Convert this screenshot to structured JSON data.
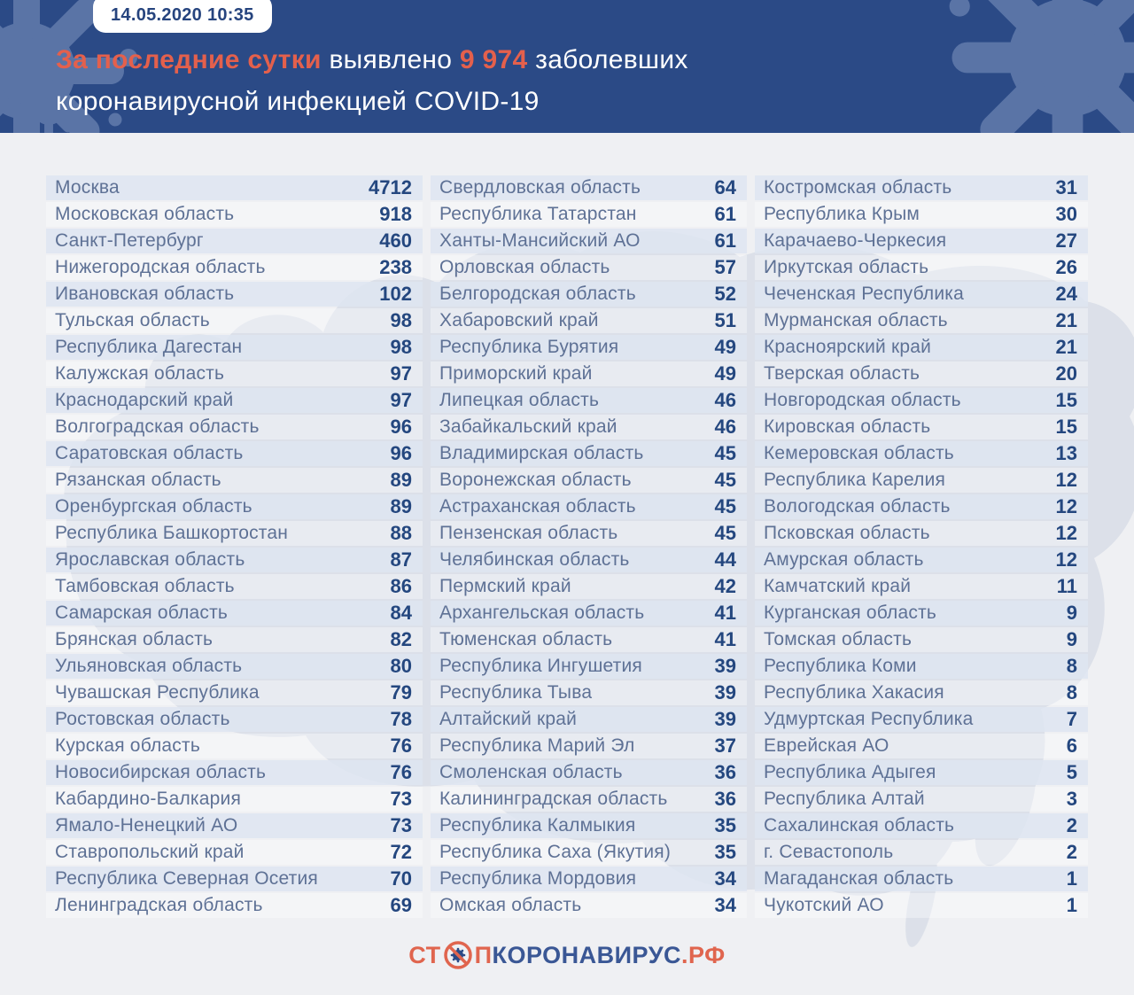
{
  "header": {
    "timestamp": "14.05.2020 10:35",
    "headline": {
      "accent1": "За последние сутки",
      "mid": " выявлено ",
      "number": "9 974",
      "tail": " заболевших",
      "line2": "коронавирусной инфекцией COVID-19"
    }
  },
  "chart_data": {
    "type": "table",
    "title": "За последние сутки выявлено 9 974 заболевших коронавирусной инфекцией COVID-19",
    "date_label": "14.05.2020 10:35",
    "total_new_cases": 9974,
    "columns": [
      {
        "rows": [
          [
            "Москва",
            4712
          ],
          [
            "Московская область",
            918
          ],
          [
            "Санкт-Петербург",
            460
          ],
          [
            "Нижегородская область",
            238
          ],
          [
            "Ивановская область",
            102
          ],
          [
            "Тульская область",
            98
          ],
          [
            "Республика Дагестан",
            98
          ],
          [
            "Калужская область",
            97
          ],
          [
            "Краснодарский край",
            97
          ],
          [
            "Волгоградская область",
            96
          ],
          [
            "Саратовская область",
            96
          ],
          [
            "Рязанская область",
            89
          ],
          [
            "Оренбургская область",
            89
          ],
          [
            "Республика Башкортостан",
            88
          ],
          [
            "Ярославская область",
            87
          ],
          [
            "Тамбовская область",
            86
          ],
          [
            "Самарская область",
            84
          ],
          [
            "Брянская область",
            82
          ],
          [
            "Ульяновская область",
            80
          ],
          [
            "Чувашская Республика",
            79
          ],
          [
            "Ростовская область",
            78
          ],
          [
            "Курская область",
            76
          ],
          [
            "Новосибирская область",
            76
          ],
          [
            "Кабардино-Балкария",
            73
          ],
          [
            "Ямало-Ненецкий АО",
            73
          ],
          [
            "Ставропольский край",
            72
          ],
          [
            "Республика Северная Осетия",
            70
          ],
          [
            "Ленинградская область",
            69
          ]
        ]
      },
      {
        "rows": [
          [
            "Свердловская область",
            64
          ],
          [
            "Республика Татарстан",
            61
          ],
          [
            "Ханты-Мансийский АО",
            61
          ],
          [
            "Орловская область",
            57
          ],
          [
            "Белгородская область",
            52
          ],
          [
            "Хабаровский край",
            51
          ],
          [
            "Республика Бурятия",
            49
          ],
          [
            "Приморский край",
            49
          ],
          [
            "Липецкая область",
            46
          ],
          [
            "Забайкальский край",
            46
          ],
          [
            "Владимирская область",
            45
          ],
          [
            "Воронежская область",
            45
          ],
          [
            "Астраханская область",
            45
          ],
          [
            "Пензенская область",
            45
          ],
          [
            "Челябинская область",
            44
          ],
          [
            "Пермский край",
            42
          ],
          [
            "Архангельская область",
            41
          ],
          [
            "Тюменская область",
            41
          ],
          [
            "Республика Ингушетия",
            39
          ],
          [
            "Республика Тыва",
            39
          ],
          [
            "Алтайский край",
            39
          ],
          [
            "Республика Марий Эл",
            37
          ],
          [
            "Смоленская область",
            36
          ],
          [
            "Калининградская область",
            36
          ],
          [
            "Республика Калмыкия",
            35
          ],
          [
            "Республика Саха (Якутия)",
            35
          ],
          [
            "Республика Мордовия",
            34
          ],
          [
            "Омская область",
            34
          ]
        ]
      },
      {
        "rows": [
          [
            "Костромская область",
            31
          ],
          [
            "Республика Крым",
            30
          ],
          [
            "Карачаево-Черкесия",
            27
          ],
          [
            "Иркутская область",
            26
          ],
          [
            "Чеченская Республика",
            24
          ],
          [
            "Мурманская область",
            21
          ],
          [
            "Красноярский край",
            21
          ],
          [
            "Тверская область",
            20
          ],
          [
            "Новгородская область",
            15
          ],
          [
            "Кировская область",
            15
          ],
          [
            "Кемеровская область",
            13
          ],
          [
            "Республика Карелия",
            12
          ],
          [
            "Вологодская область",
            12
          ],
          [
            "Псковская область",
            12
          ],
          [
            "Амурская область",
            12
          ],
          [
            "Камчатский край",
            11
          ],
          [
            "Курганская область",
            9
          ],
          [
            "Томская область",
            9
          ],
          [
            "Республика Коми",
            8
          ],
          [
            "Республика Хакасия",
            8
          ],
          [
            "Удмуртская Республика",
            7
          ],
          [
            "Еврейская АО",
            6
          ],
          [
            "Республика Адыгея",
            5
          ],
          [
            "Республика Алтай",
            3
          ],
          [
            "Сахалинская область",
            2
          ],
          [
            "г. Севастополь",
            2
          ],
          [
            "Магаданская область",
            1
          ],
          [
            "Чукотский АО",
            1
          ]
        ]
      }
    ]
  },
  "footer": {
    "logo_prefix": "СТ",
    "logo_p": "П",
    "logo_main": "КОРОНАВИРУС",
    "logo_suffix": ".РФ"
  },
  "colors": {
    "header_bg": "#2b4a86",
    "accent_red": "#e4604c",
    "region_text": "#5e7195",
    "value_text": "#24477f",
    "logo_orange": "#e0654e",
    "logo_blue": "#3a5795",
    "map_silhouette": "#ccd4e1",
    "page_bg": "#eff0f3"
  }
}
